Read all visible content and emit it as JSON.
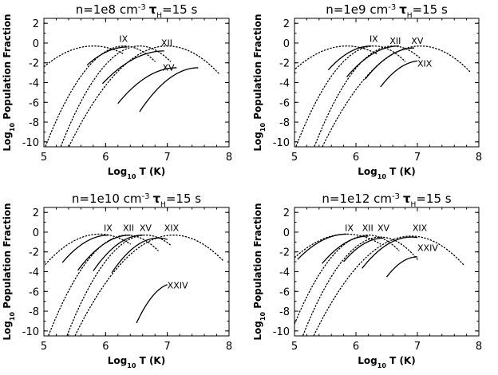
{
  "figure": {
    "ylabel_main": "Log",
    "ylabel_sub": "10",
    "ylabel_rest": " Population Fraction",
    "xlabel_main": "Log",
    "xlabel_sub": "10",
    "xlabel_rest": " T (K)"
  },
  "chart_data": [
    {
      "type": "line",
      "title_n": "n=1e8 cm",
      "title_exp": "-3",
      "title_tau": "τ",
      "title_sub": "H",
      "title_val": "=15 s",
      "xlim": [
        5,
        8
      ],
      "ylim": [
        -10.5,
        2.5
      ],
      "xticks": [
        5,
        6,
        7,
        8
      ],
      "yticks": [
        2,
        0,
        -2,
        -4,
        -6,
        -8,
        -10
      ],
      "dotted": [
        {
          "peak_x": 5.8,
          "peak_y": -0.3,
          "width": 0.55,
          "x_end": 6.3
        },
        {
          "peak_x": 6.3,
          "peak_y": -0.3,
          "width": 0.4,
          "x_end": 6.8
        },
        {
          "peak_x": 6.55,
          "peak_y": -0.3,
          "width": 0.4,
          "x_end": 7.05
        },
        {
          "peak_x": 7.0,
          "peak_y": -0.3,
          "width": 0.5,
          "x_end": 7.85
        }
      ],
      "solid": [
        {
          "name": "IX",
          "x_start": 5.7,
          "peak_x": 6.35,
          "peak_y": -0.4,
          "width": 0.48,
          "label_x": 6.22,
          "label_y": 0.1
        },
        {
          "name": "XII",
          "x_start": 5.95,
          "peak_x": 6.95,
          "peak_y": -0.8,
          "width": 0.55,
          "label_x": 6.9,
          "label_y": -0.3
        },
        {
          "name": "XV",
          "x_start": 6.2,
          "peak_x": 7.15,
          "peak_y": -2.5,
          "width": 0.5,
          "label_x": 6.92,
          "label_y": -2.8
        },
        {
          "name": "",
          "x_start": 6.55,
          "peak_x": 7.5,
          "peak_y": -2.5,
          "width": 0.45
        }
      ]
    },
    {
      "type": "line",
      "title_n": "n=1e9 cm",
      "title_exp": "-3",
      "title_tau": "τ",
      "title_sub": "H",
      "title_val": "=15 s",
      "xlim": [
        5,
        8
      ],
      "ylim": [
        -10.5,
        2.5
      ],
      "xticks": [
        5,
        6,
        7,
        8
      ],
      "yticks": [
        2,
        0,
        -2,
        -4,
        -6,
        -8,
        -10
      ],
      "dotted": [
        {
          "peak_x": 5.85,
          "peak_y": -0.3,
          "width": 0.55,
          "x_end": 6.35
        },
        {
          "peak_x": 6.3,
          "peak_y": -0.3,
          "width": 0.4,
          "x_end": 6.8
        },
        {
          "peak_x": 6.6,
          "peak_y": -0.3,
          "width": 0.4,
          "x_end": 7.05
        },
        {
          "peak_x": 7.05,
          "peak_y": -0.3,
          "width": 0.5,
          "x_end": 7.85
        }
      ],
      "solid": [
        {
          "name": "IX",
          "x_start": 5.55,
          "peak_x": 6.25,
          "peak_y": -0.3,
          "width": 0.45,
          "label_x": 6.22,
          "label_y": 0.1
        },
        {
          "name": "XII",
          "x_start": 5.85,
          "peak_x": 6.7,
          "peak_y": -0.3,
          "width": 0.48,
          "label_x": 6.55,
          "label_y": -0.1
        },
        {
          "name": "XV",
          "x_start": 6.15,
          "peak_x": 6.95,
          "peak_y": -0.5,
          "width": 0.45,
          "label_x": 6.9,
          "label_y": -0.1
        },
        {
          "name": "XIX",
          "x_start": 6.4,
          "peak_x": 7.05,
          "peak_y": -1.8,
          "width": 0.4,
          "x_end": 7.0,
          "label_x": 7.0,
          "label_y": -2.4
        }
      ]
    },
    {
      "type": "line",
      "title_n": "n=1e10 cm",
      "title_exp": "-3",
      "title_tau": "τ",
      "title_sub": "H",
      "title_val": "=15 s",
      "xlim": [
        5,
        8
      ],
      "ylim": [
        -10.5,
        2.5
      ],
      "xticks": [
        5,
        6,
        7,
        8
      ],
      "yticks": [
        2,
        0,
        -2,
        -4,
        -6,
        -8,
        -10
      ],
      "dotted": [
        {
          "peak_x": 5.9,
          "peak_y": -0.2,
          "width": 0.5,
          "x_end": 6.4
        },
        {
          "peak_x": 6.35,
          "peak_y": -0.3,
          "width": 0.4,
          "x_end": 6.85
        },
        {
          "peak_x": 6.65,
          "peak_y": -0.3,
          "width": 0.4,
          "x_end": 7.05
        },
        {
          "peak_x": 7.1,
          "peak_y": -0.3,
          "width": 0.5,
          "x_end": 7.9
        }
      ],
      "solid": [
        {
          "name": "IX",
          "x_start": 5.3,
          "peak_x": 6.05,
          "peak_y": -0.3,
          "width": 0.45,
          "label_x": 5.97,
          "label_y": 0.1
        },
        {
          "name": "XII",
          "x_start": 5.55,
          "peak_x": 6.4,
          "peak_y": -0.3,
          "width": 0.45,
          "label_x": 6.28,
          "label_y": 0.1
        },
        {
          "name": "XV",
          "x_start": 5.8,
          "peak_x": 6.6,
          "peak_y": -0.3,
          "width": 0.42,
          "label_x": 6.55,
          "label_y": 0.1
        },
        {
          "name": "XIX",
          "x_start": 6.1,
          "peak_x": 6.85,
          "peak_y": -0.6,
          "width": 0.4,
          "x_end": 7.0,
          "label_x": 6.95,
          "label_y": 0.1
        },
        {
          "name": "XXIV",
          "x_start": 6.5,
          "peak_x": 7.1,
          "peak_y": -5.2,
          "width": 0.3,
          "x_end": 7.0,
          "label_x": 7.0,
          "label_y": -5.7
        }
      ]
    },
    {
      "type": "line",
      "title_n": "n=1e12 cm",
      "title_exp": "-3",
      "title_tau": "τ",
      "title_sub": "H",
      "title_val": "=15 s",
      "xlim": [
        5,
        8
      ],
      "ylim": [
        -10.5,
        2.5
      ],
      "xticks": [
        5,
        6,
        7,
        8
      ],
      "yticks": [
        2,
        0,
        -2,
        -4,
        -6,
        -8,
        -10
      ],
      "dotted": [
        {
          "peak_x": 5.85,
          "peak_y": -0.2,
          "width": 0.55,
          "x_end": 6.4
        },
        {
          "peak_x": 6.2,
          "peak_y": -0.3,
          "width": 0.4,
          "x_end": 6.7
        },
        {
          "peak_x": 6.4,
          "peak_y": -0.5,
          "width": 0.4,
          "x_end": 7.0
        },
        {
          "peak_x": 6.9,
          "peak_y": -0.4,
          "width": 0.5,
          "x_end": 7.75
        }
      ],
      "solid": [
        {
          "name": "IX",
          "x_start": 5.05,
          "peak_x": 5.85,
          "peak_y": -0.2,
          "width": 0.5,
          "label_x": 5.82,
          "label_y": 0.1
        },
        {
          "name": "XII",
          "x_start": 5.45,
          "peak_x": 6.2,
          "peak_y": -0.4,
          "width": 0.45,
          "label_x": 6.1,
          "label_y": 0.1
        },
        {
          "name": "XV",
          "x_start": 5.8,
          "peak_x": 6.45,
          "peak_y": -0.6,
          "width": 0.42,
          "label_x": 6.35,
          "label_y": 0.1
        },
        {
          "name": "XIX",
          "x_start": 6.1,
          "peak_x": 6.9,
          "peak_y": -0.5,
          "width": 0.45,
          "x_end": 7.0,
          "label_x": 6.92,
          "label_y": 0.1
        },
        {
          "name": "XXIV",
          "x_start": 6.5,
          "peak_x": 7.0,
          "peak_y": -2.5,
          "width": 0.35,
          "x_end": 7.0,
          "label_x": 7.0,
          "label_y": -1.9
        }
      ]
    }
  ]
}
